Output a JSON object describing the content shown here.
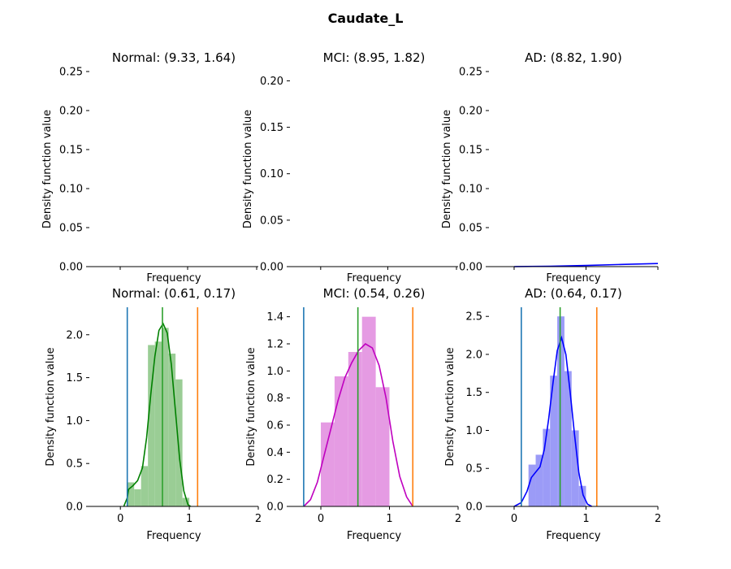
{
  "figure": {
    "title": "Caudate_L"
  },
  "chart_data": [
    {
      "type": "line",
      "title": "Normal: (9.33, 1.64)",
      "xlabel": "Frequency",
      "ylabel": "Density function value",
      "ylim": [
        0,
        0.25
      ],
      "yticks": [
        "0.00",
        "0.05",
        "0.10",
        "0.15",
        "0.20",
        "0.25"
      ],
      "xticks": [],
      "color": "#008000",
      "curve": [],
      "bars": [],
      "vlines": []
    },
    {
      "type": "line",
      "title": "MCI: (8.95, 1.82)",
      "xlabel": "Frequency",
      "ylabel": "Density function value",
      "ylim": [
        0,
        0.21
      ],
      "yticks": [
        "0.00",
        "0.05",
        "0.10",
        "0.15",
        "0.20"
      ],
      "xticks": [],
      "color": "#bf00bf",
      "curve": [],
      "bars": [],
      "vlines": []
    },
    {
      "type": "line",
      "title": "AD: (8.82, 1.90)",
      "xlabel": "Frequency",
      "ylabel": "Density function value",
      "xlim": [
        -0.35,
        2.0
      ],
      "ylim": [
        0,
        0.25
      ],
      "yticks": [
        "0.00",
        "0.05",
        "0.10",
        "0.15",
        "0.20",
        "0.25"
      ],
      "xticks": [],
      "color": "#0000ff",
      "curve": [
        [
          0.0,
          0.0
        ],
        [
          0.5,
          0.0005
        ],
        [
          1.0,
          0.0015
        ],
        [
          1.5,
          0.0028
        ],
        [
          2.0,
          0.004
        ]
      ],
      "bars": [],
      "vlines": []
    },
    {
      "type": "area",
      "title": "Normal: (0.61, 0.17)",
      "xlabel": "Frequency",
      "ylabel": "Density function value",
      "xlim": [
        -0.45,
        2.0
      ],
      "ylim": [
        0,
        2.32
      ],
      "yticks": [
        "0.0",
        "0.5",
        "1.0",
        "1.5",
        "2.0"
      ],
      "xticks": [
        "0",
        "1",
        "2"
      ],
      "color": "#008000",
      "bar_color": "#9acd95",
      "bars": [
        {
          "x0": 0.1,
          "x1": 0.2,
          "value": 0.28
        },
        {
          "x0": 0.2,
          "x1": 0.3,
          "value": 0.2
        },
        {
          "x0": 0.3,
          "x1": 0.4,
          "value": 0.47
        },
        {
          "x0": 0.4,
          "x1": 0.5,
          "value": 1.88
        },
        {
          "x0": 0.5,
          "x1": 0.6,
          "value": 1.92
        },
        {
          "x0": 0.6,
          "x1": 0.7,
          "value": 2.08
        },
        {
          "x0": 0.7,
          "x1": 0.8,
          "value": 1.78
        },
        {
          "x0": 0.8,
          "x1": 0.9,
          "value": 1.48
        },
        {
          "x0": 0.9,
          "x1": 1.0,
          "value": 0.1
        }
      ],
      "curve": [
        [
          0.05,
          0.0
        ],
        [
          0.1,
          0.1
        ],
        [
          0.12,
          0.2
        ],
        [
          0.18,
          0.24
        ],
        [
          0.25,
          0.3
        ],
        [
          0.32,
          0.45
        ],
        [
          0.38,
          0.8
        ],
        [
          0.44,
          1.3
        ],
        [
          0.5,
          1.75
        ],
        [
          0.56,
          2.05
        ],
        [
          0.62,
          2.13
        ],
        [
          0.68,
          2.02
        ],
        [
          0.74,
          1.65
        ],
        [
          0.8,
          1.1
        ],
        [
          0.86,
          0.55
        ],
        [
          0.92,
          0.18
        ],
        [
          0.98,
          0.02
        ],
        [
          1.02,
          0.0
        ]
      ],
      "vlines": [
        {
          "x": 0.1,
          "color": "#1f77b4"
        },
        {
          "x": 0.61,
          "color": "#2ca02c"
        },
        {
          "x": 1.12,
          "color": "#ff7f0e"
        }
      ]
    },
    {
      "type": "area",
      "title": "MCI: (0.54, 0.26)",
      "xlabel": "Frequency",
      "ylabel": "Density function value",
      "xlim": [
        -0.45,
        2.0
      ],
      "ylim": [
        0,
        1.47
      ],
      "yticks": [
        "0.0",
        "0.2",
        "0.4",
        "0.6",
        "0.8",
        "1.0",
        "1.2",
        "1.4"
      ],
      "xticks": [
        "0",
        "1",
        "2"
      ],
      "color": "#bf00bf",
      "bar_color": "#e59be3",
      "bars": [
        {
          "x0": 0.0,
          "x1": 0.2,
          "value": 0.62
        },
        {
          "x0": 0.2,
          "x1": 0.4,
          "value": 0.96
        },
        {
          "x0": 0.4,
          "x1": 0.6,
          "value": 1.14
        },
        {
          "x0": 0.6,
          "x1": 0.8,
          "value": 1.4
        },
        {
          "x0": 0.8,
          "x1": 1.0,
          "value": 0.88
        }
      ],
      "curve": [
        [
          -0.25,
          0.0
        ],
        [
          -0.15,
          0.05
        ],
        [
          -0.05,
          0.18
        ],
        [
          0.05,
          0.38
        ],
        [
          0.15,
          0.58
        ],
        [
          0.25,
          0.78
        ],
        [
          0.35,
          0.95
        ],
        [
          0.45,
          1.06
        ],
        [
          0.55,
          1.15
        ],
        [
          0.65,
          1.2
        ],
        [
          0.75,
          1.17
        ],
        [
          0.85,
          1.04
        ],
        [
          0.95,
          0.8
        ],
        [
          1.05,
          0.48
        ],
        [
          1.15,
          0.22
        ],
        [
          1.25,
          0.07
        ],
        [
          1.34,
          0.0
        ]
      ],
      "vlines": [
        {
          "x": -0.25,
          "color": "#1f77b4"
        },
        {
          "x": 0.54,
          "color": "#2ca02c"
        },
        {
          "x": 1.34,
          "color": "#ff7f0e"
        }
      ]
    },
    {
      "type": "area",
      "title": "AD: (0.64, 0.17)",
      "xlabel": "Frequency",
      "ylabel": "Density function value",
      "xlim": [
        -0.35,
        2.0
      ],
      "ylim": [
        0,
        2.62
      ],
      "yticks": [
        "0.0",
        "0.5",
        "1.0",
        "1.5",
        "2.0",
        "2.5"
      ],
      "xticks": [
        "0",
        "1",
        "2"
      ],
      "color": "#0000ff",
      "bar_color": "#9b9bf7",
      "bars": [
        {
          "x0": 0.2,
          "x1": 0.3,
          "value": 0.55
        },
        {
          "x0": 0.3,
          "x1": 0.4,
          "value": 0.68
        },
        {
          "x0": 0.4,
          "x1": 0.5,
          "value": 1.02
        },
        {
          "x0": 0.5,
          "x1": 0.6,
          "value": 1.72
        },
        {
          "x0": 0.6,
          "x1": 0.7,
          "value": 2.5
        },
        {
          "x0": 0.7,
          "x1": 0.8,
          "value": 1.78
        },
        {
          "x0": 0.8,
          "x1": 0.9,
          "value": 1.0
        },
        {
          "x0": 0.9,
          "x1": 1.0,
          "value": 0.27
        }
      ],
      "curve": [
        [
          0.0,
          0.0
        ],
        [
          0.1,
          0.05
        ],
        [
          0.18,
          0.2
        ],
        [
          0.24,
          0.38
        ],
        [
          0.3,
          0.45
        ],
        [
          0.36,
          0.52
        ],
        [
          0.42,
          0.75
        ],
        [
          0.48,
          1.15
        ],
        [
          0.54,
          1.62
        ],
        [
          0.6,
          2.05
        ],
        [
          0.66,
          2.22
        ],
        [
          0.72,
          2.0
        ],
        [
          0.78,
          1.5
        ],
        [
          0.84,
          0.95
        ],
        [
          0.9,
          0.45
        ],
        [
          0.96,
          0.15
        ],
        [
          1.02,
          0.03
        ],
        [
          1.08,
          0.0
        ]
      ],
      "vlines": [
        {
          "x": 0.1,
          "color": "#1f77b4"
        },
        {
          "x": 0.64,
          "color": "#2ca02c"
        },
        {
          "x": 1.15,
          "color": "#ff7f0e"
        }
      ]
    }
  ]
}
